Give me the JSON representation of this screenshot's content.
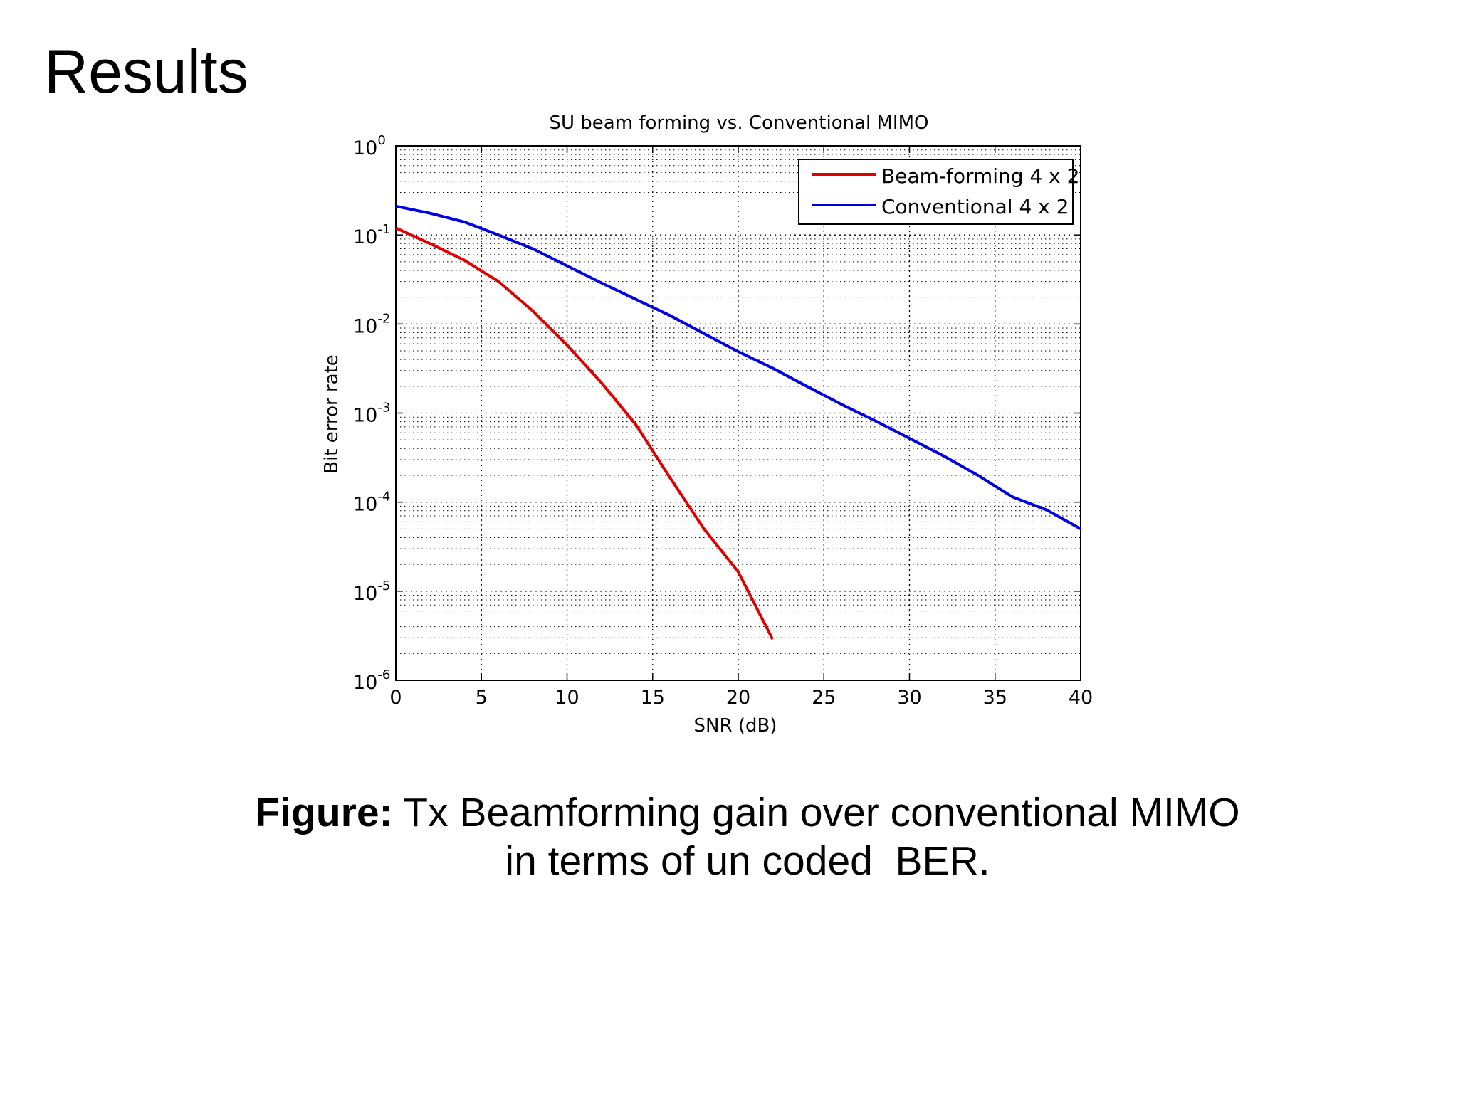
{
  "slide": {
    "title": "Results",
    "caption": {
      "label": "Figure:",
      "line1": " Tx Beamforming gain over conventional MIMO",
      "line2": "in terms of un coded  BER."
    }
  },
  "chart_data": {
    "type": "line",
    "title": "SU beam forming vs. Conventional MIMO",
    "xlabel": "SNR (dB)",
    "ylabel": "Bit error rate",
    "xlim": [
      0,
      40
    ],
    "ylim": [
      1e-06,
      1
    ],
    "yscale": "log",
    "grid": true,
    "legend_position": "top-right",
    "x_ticks": [
      0,
      5,
      10,
      15,
      20,
      25,
      30,
      35,
      40
    ],
    "y_tick_exponents": [
      0,
      -1,
      -2,
      -3,
      -4,
      -5,
      -6
    ],
    "series": [
      {
        "name": "Beam-forming 4 x 2",
        "color": "#e00000",
        "x": [
          0,
          2,
          4,
          6,
          8,
          10,
          12,
          14,
          16,
          18,
          20,
          22
        ],
        "y": [
          0.12,
          0.08,
          0.052,
          0.03,
          0.014,
          0.0058,
          0.0022,
          0.00075,
          0.00019,
          5e-05,
          1.65e-05,
          2.9e-06
        ]
      },
      {
        "name": "Conventional 4 x 2",
        "color": "#0000e0",
        "x": [
          0,
          2,
          4,
          6,
          8,
          10,
          12,
          14,
          16,
          18,
          20,
          22,
          24,
          26,
          28,
          30,
          32,
          34,
          36,
          38,
          40
        ],
        "y": [
          0.21,
          0.175,
          0.14,
          0.1,
          0.07,
          0.045,
          0.029,
          0.019,
          0.0125,
          0.0078,
          0.0049,
          0.0032,
          0.002,
          0.00126,
          0.00082,
          0.00052,
          0.00033,
          0.0002,
          0.000115,
          8.2e-05,
          5e-05
        ]
      }
    ]
  }
}
